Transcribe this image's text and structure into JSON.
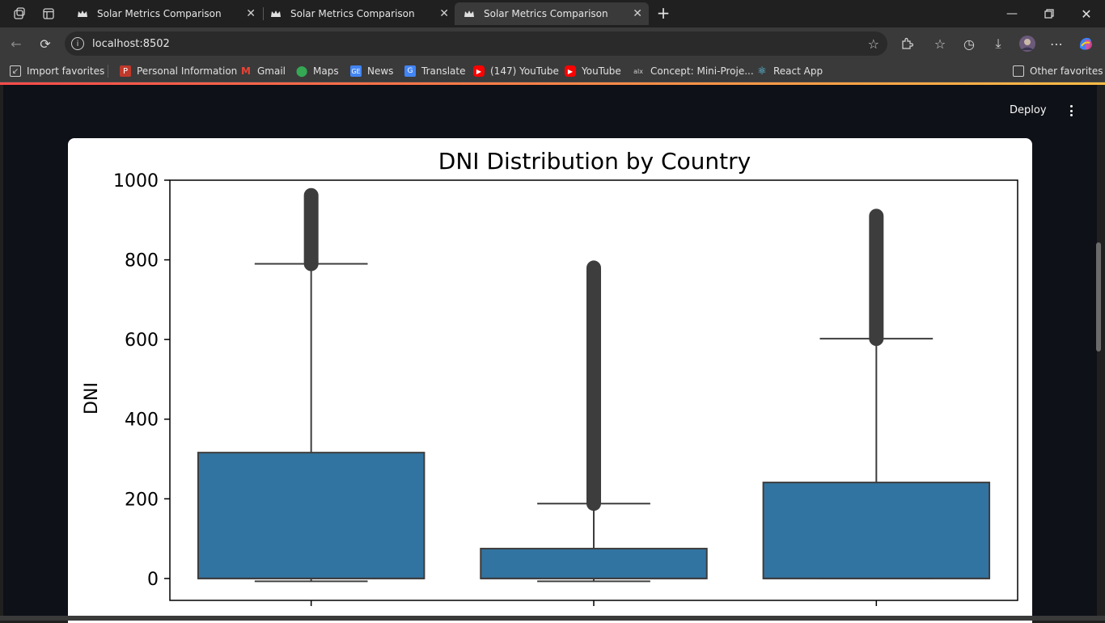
{
  "browser": {
    "tabs": [
      {
        "title": "Solar Metrics Comparison",
        "active": false
      },
      {
        "title": "Solar Metrics Comparison",
        "active": false
      },
      {
        "title": "Solar Metrics Comparison",
        "active": true
      }
    ],
    "url": "localhost:8502",
    "bookmarks": [
      {
        "label": "Import favorites",
        "icon": "import-icon"
      },
      {
        "label": "Personal Information",
        "icon": "personal-info-icon"
      },
      {
        "label": "Gmail",
        "icon": "gmail-icon"
      },
      {
        "label": "Maps",
        "icon": "maps-icon"
      },
      {
        "label": "News",
        "icon": "news-icon"
      },
      {
        "label": "Translate",
        "icon": "translate-icon"
      },
      {
        "label": "(147) YouTube",
        "icon": "youtube-icon"
      },
      {
        "label": "YouTube",
        "icon": "youtube-icon"
      },
      {
        "label": "Concept: Mini-Proje...",
        "icon": "alx-icon"
      },
      {
        "label": "React App",
        "icon": "react-icon"
      }
    ],
    "other_favorites": "Other favorites"
  },
  "app": {
    "deploy_label": "Deploy"
  },
  "chart_data": {
    "type": "box",
    "title": "DNI Distribution by Country",
    "ylabel": "DNI",
    "xlabel": "",
    "ylim": [
      -55,
      1000
    ],
    "yticks": [
      0,
      200,
      400,
      600,
      800,
      1000
    ],
    "grid": false,
    "box_color": "#3274a1",
    "line_color": "#3d3d3d",
    "boxes": [
      {
        "q1": 0,
        "median": 0,
        "q3": 316,
        "whisker_low": -7,
        "whisker_high": 790,
        "outliers_range": [
          790,
          962
        ]
      },
      {
        "q1": 0,
        "median": 0,
        "q3": 75,
        "whisker_low": -7,
        "whisker_high": 188,
        "outliers_range": [
          188,
          780
        ]
      },
      {
        "q1": 0,
        "median": 0,
        "q3": 241,
        "whisker_low": 0,
        "whisker_high": 602,
        "outliers_range": [
          602,
          910
        ]
      }
    ]
  }
}
